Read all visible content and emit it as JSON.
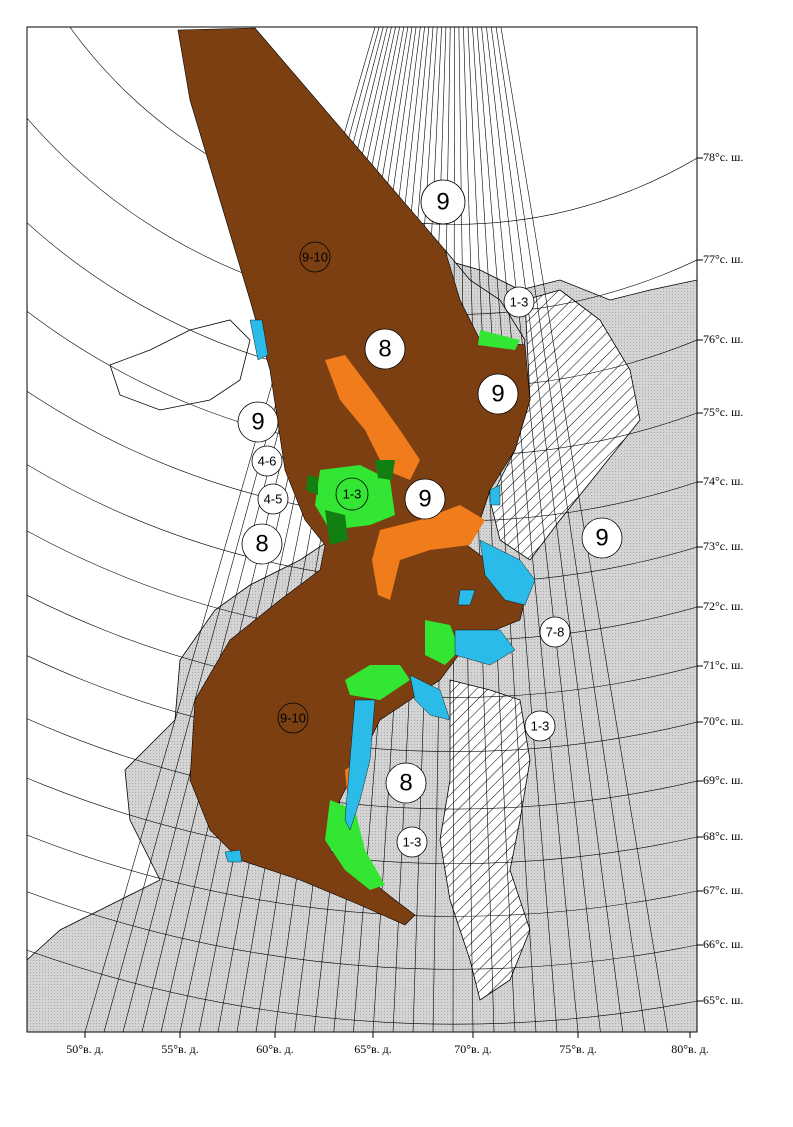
{
  "map": {
    "lat_labels": [
      "78°с. ш.",
      "77°с. ш.",
      "76°с. ш.",
      "75°с. ш.",
      "74°с. ш.",
      "73°с. ш.",
      "72°с. ш.",
      "71°с. ш.",
      "70°с. ш.",
      "69°с. ш.",
      "68°с. ш.",
      "67°с. ш.",
      "66°с. ш.",
      "65°с. ш."
    ],
    "lon_labels": [
      "50°в. д.",
      "55°в. д.",
      "60°в. д.",
      "65°в. д.",
      "70°в. д.",
      "75°в. д.",
      "80°в. д."
    ],
    "ice_labels": [
      "9",
      "9-10",
      "1-3",
      "8",
      "9",
      "9",
      "4-6",
      "1-3",
      "9",
      "4-5",
      "8",
      "9",
      "7-8",
      "1-3",
      "9-10",
      "8",
      "1-3"
    ]
  }
}
